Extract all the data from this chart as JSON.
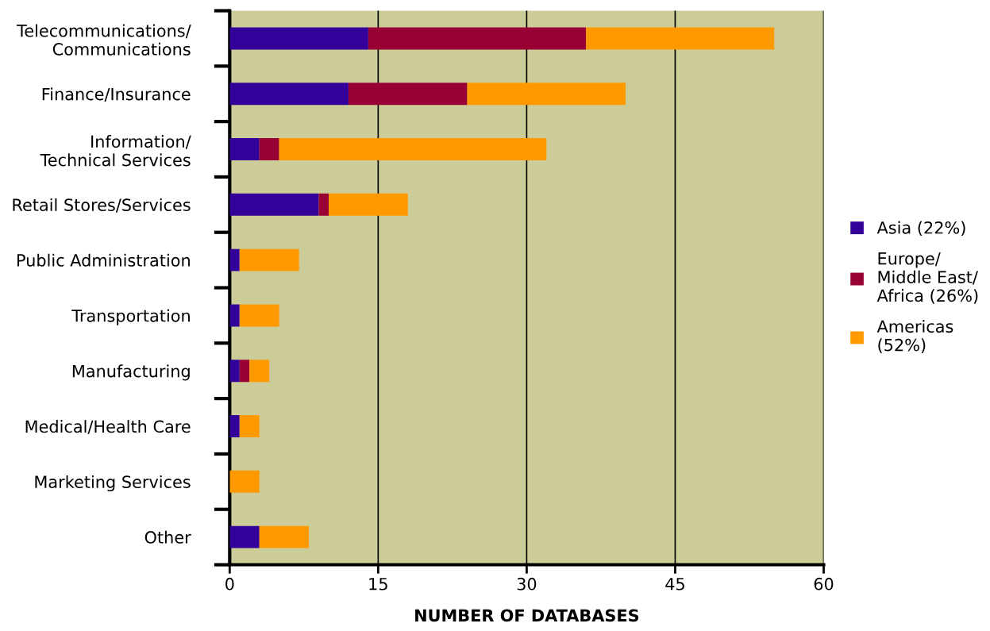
{
  "chart_data": {
    "type": "bar",
    "orientation": "horizontal",
    "stacked": true,
    "xlabel": "NUMBER OF DATABASES",
    "categories": [
      "Telecommunications/\nCommunications",
      "Finance/Insurance",
      "Information/\nTechnical Services",
      "Retail Stores/Services",
      "Public Administration",
      "Transportation",
      "Manufacturing",
      "Medical/Health Care",
      "Marketing Services",
      "Other"
    ],
    "series": [
      {
        "name": "Asia (22%)",
        "color": "#330099",
        "values": [
          14,
          12,
          3,
          9,
          1,
          1,
          1,
          1,
          0,
          3
        ]
      },
      {
        "name": "Europe/\nMiddle East/\nAfrica (26%)",
        "color": "#990033",
        "values": [
          22,
          12,
          2,
          1,
          0,
          0,
          1,
          0,
          0,
          0
        ]
      },
      {
        "name": "Americas\n(52%)",
        "color": "#ff9900",
        "values": [
          19,
          16,
          27,
          8,
          6,
          4,
          2,
          2,
          3,
          5
        ]
      }
    ],
    "xlim": [
      0,
      60
    ],
    "xticks": [
      0,
      15,
      30,
      45,
      60
    ],
    "grid": "x",
    "legend": "right"
  }
}
